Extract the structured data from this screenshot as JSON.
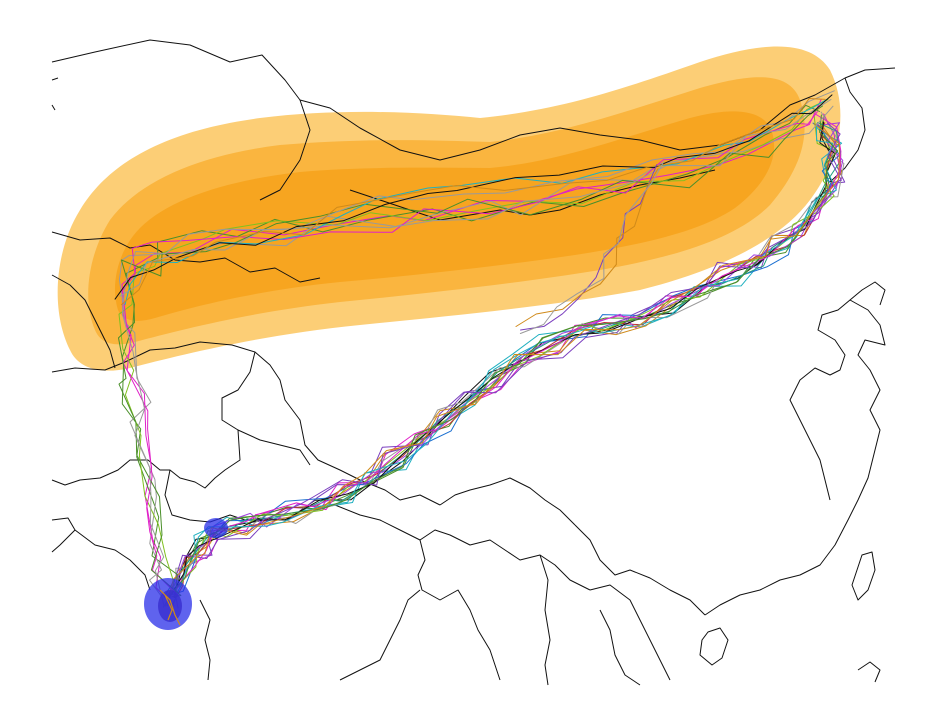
{
  "map": {
    "range_colors": {
      "outer": "#fbc55e",
      "middle": "#f9b33a",
      "inner": "#f7a41f"
    },
    "stopover_color": "#2a2fe8",
    "track_colors": [
      "#111111",
      "#e020c8",
      "#20b0c0",
      "#7b3fbf",
      "#4a8f2a",
      "#d08a1a",
      "#1a6fd0",
      "#9a9a9a",
      "#c03030",
      "#20a080",
      "#80c020",
      "#a040e0"
    ],
    "layers": [
      "country-borders",
      "breeding-range-density",
      "migration-tracks",
      "wintering-stopover-areas"
    ]
  }
}
